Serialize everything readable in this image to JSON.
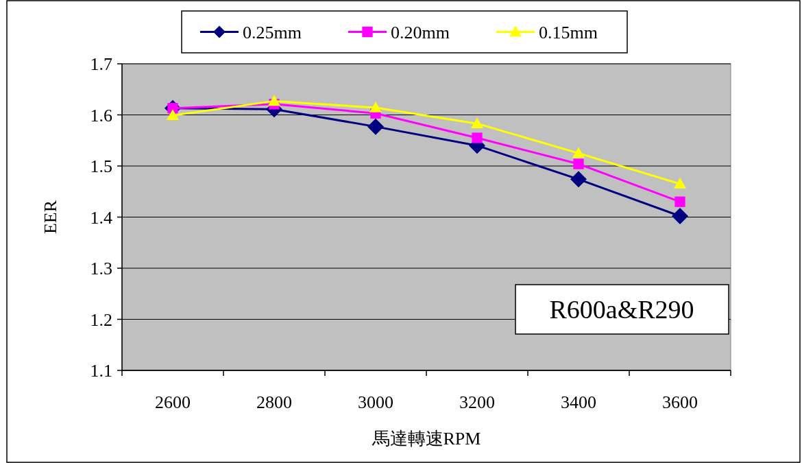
{
  "chart_data": {
    "type": "line",
    "xlabel": "馬達轉速RPM",
    "ylabel": "EER",
    "categories": [
      "2600",
      "2800",
      "3000",
      "3200",
      "3400",
      "3600"
    ],
    "series": [
      {
        "name": "0.25mm",
        "color": "#000080",
        "marker": "diamond",
        "values": [
          1.613,
          1.611,
          1.577,
          1.54,
          1.474,
          1.402
        ]
      },
      {
        "name": "0.20mm",
        "color": "#ff00ff",
        "marker": "square",
        "values": [
          1.613,
          1.621,
          1.603,
          1.555,
          1.504,
          1.43
        ]
      },
      {
        "name": "0.15mm",
        "color": "#ffff00",
        "marker": "triangle",
        "values": [
          1.599,
          1.627,
          1.614,
          1.583,
          1.525,
          1.465
        ]
      }
    ],
    "ylim": [
      1.1,
      1.7
    ],
    "yticks": [
      1.1,
      1.2,
      1.3,
      1.4,
      1.5,
      1.6,
      1.7
    ],
    "grid": "y",
    "legend": "top",
    "annotations": [
      "R600a&R290"
    ]
  }
}
